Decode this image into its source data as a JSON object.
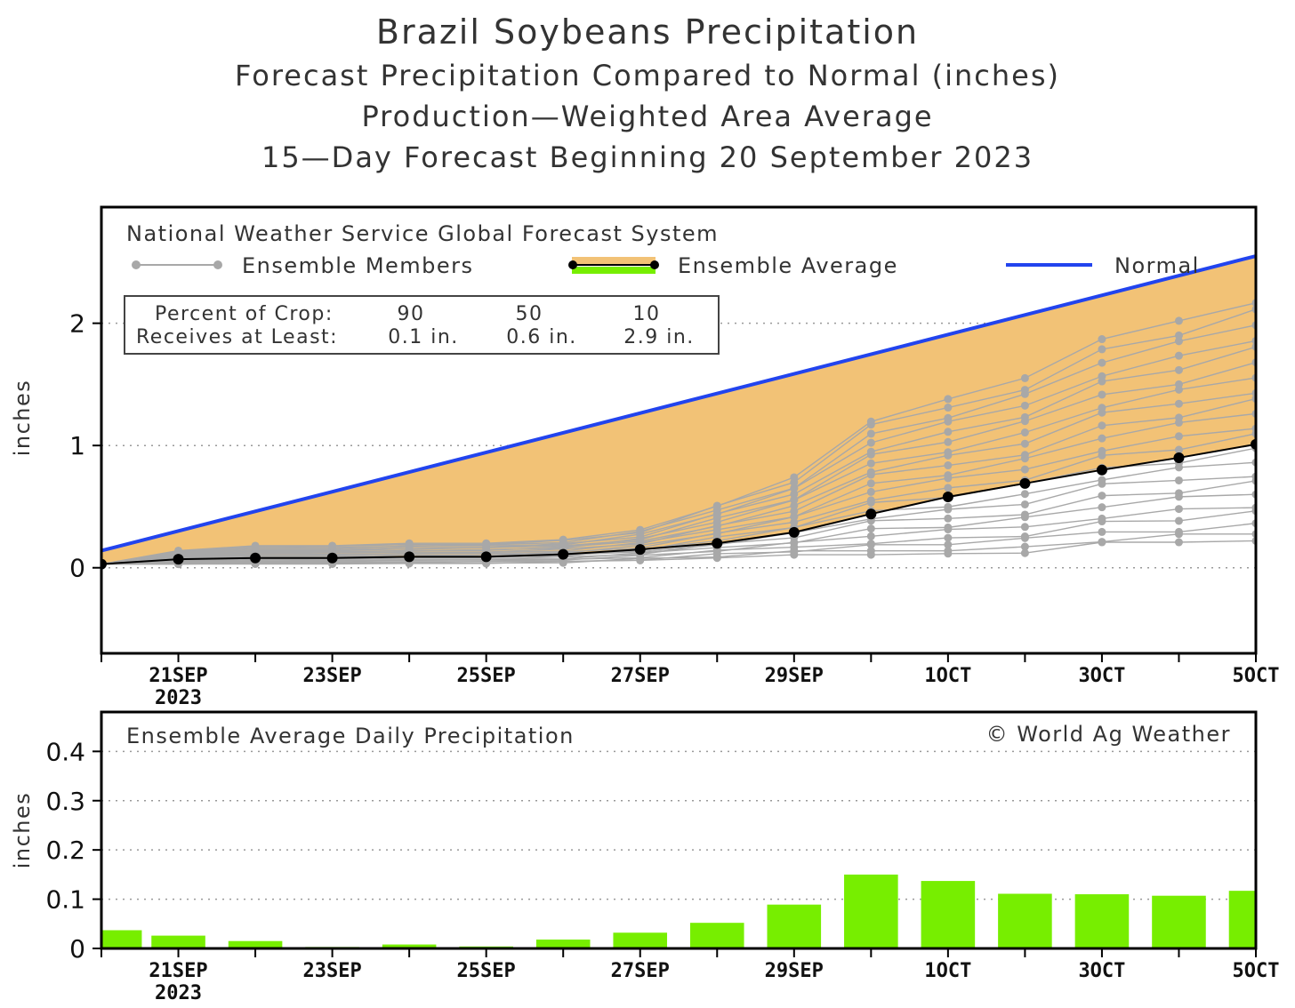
{
  "title": "Brazil Soybeans Precipitation",
  "subtitle1": "Forecast Precipitation Compared to Normal (inches)",
  "subtitle2": "Production—Weighted Area Average",
  "subtitle3": "15—Day Forecast Beginning 20 September 2023",
  "top_panel": {
    "model_label": "National Weather Service Global Forecast System",
    "legend": {
      "members": "Ensemble Members",
      "average": "Ensemble Average",
      "normal": "Normal"
    },
    "percent_box": {
      "row1_label": "Percent of Crop:",
      "row2_label": "Receives at Least:",
      "percents": [
        "90",
        "50",
        "10"
      ],
      "amounts": [
        "0.1 in.",
        "0.6 in.",
        "2.9 in."
      ]
    },
    "ylabel": "inches"
  },
  "bottom_panel": {
    "label": "Ensemble Average Daily Precipitation",
    "credit": "© World Ag Weather",
    "ylabel": "inches"
  },
  "colors": {
    "normal": "#2244ee",
    "fill": "#f2c276",
    "members": "#a8a8a8",
    "average": "#000000",
    "bars": "#77ee00"
  },
  "chart_data": [
    {
      "type": "line",
      "title": "Brazil Soybeans Precipitation",
      "ylabel": "inches",
      "x_tick_labels": [
        "21SEP",
        "23SEP",
        "25SEP",
        "27SEP",
        "29SEP",
        "1OCT",
        "3OCT",
        "5OCT"
      ],
      "x_tick_sublabel": "2023",
      "x_range": [
        "20SEP",
        "5OCT"
      ],
      "yticks": [
        0,
        1,
        2
      ],
      "ylim": [
        -0.7,
        2.95
      ],
      "grid": "dotted horizontal",
      "x_dates": [
        "20SEP",
        "21SEP",
        "22SEP",
        "23SEP",
        "24SEP",
        "25SEP",
        "26SEP",
        "27SEP",
        "28SEP",
        "29SEP",
        "30SEP",
        "1OCT",
        "2OCT",
        "3OCT",
        "4OCT",
        "5OCT"
      ],
      "series": [
        {
          "name": "Normal",
          "x": [
            "20SEP",
            "5OCT"
          ],
          "values": [
            0.14,
            2.55
          ]
        },
        {
          "name": "Ensemble Average",
          "x": [
            "20SEP",
            "21SEP",
            "22SEP",
            "23SEP",
            "24SEP",
            "25SEP",
            "26SEP",
            "27SEP",
            "28SEP",
            "29SEP",
            "30SEP",
            "1OCT",
            "2OCT",
            "3OCT",
            "4OCT",
            "5OCT"
          ],
          "values": [
            0.03,
            0.07,
            0.08,
            0.08,
            0.09,
            0.09,
            0.11,
            0.15,
            0.2,
            0.29,
            0.44,
            0.58,
            0.69,
            0.8,
            0.9,
            1.01
          ]
        }
      ],
      "ensemble_members": {
        "x": [
          "21SEP",
          "22SEP",
          "23SEP",
          "24SEP",
          "25SEP",
          "26SEP",
          "27SEP",
          "28SEP",
          "29SEP",
          "30SEP",
          "1OCT",
          "2OCT",
          "3OCT",
          "4OCT",
          "5OCT"
        ],
        "min": [
          0.02,
          0.03,
          0.03,
          0.03,
          0.03,
          0.04,
          0.06,
          0.08,
          0.1,
          0.1,
          0.1,
          0.12,
          0.18,
          0.2,
          0.22
        ],
        "max": [
          0.14,
          0.18,
          0.18,
          0.2,
          0.2,
          0.23,
          0.31,
          0.52,
          0.74,
          1.21,
          1.38,
          1.56,
          1.87,
          2.02,
          2.2
        ]
      },
      "percent_of_crop": {
        "percents": [
          90,
          50,
          10
        ],
        "amounts_in": [
          0.1,
          0.6,
          2.9
        ]
      }
    },
    {
      "type": "bar",
      "title": "Ensemble Average Daily Precipitation",
      "ylabel": "inches",
      "categories": [
        "20SEP",
        "21SEP",
        "22SEP",
        "23SEP",
        "24SEP",
        "25SEP",
        "26SEP",
        "27SEP",
        "28SEP",
        "29SEP",
        "30SEP",
        "1OCT",
        "2OCT",
        "3OCT",
        "4OCT",
        "5OCT"
      ],
      "values": [
        0.037,
        0.026,
        0.015,
        0.003,
        0.008,
        0.004,
        0.018,
        0.032,
        0.052,
        0.089,
        0.15,
        0.137,
        0.111,
        0.11,
        0.107,
        0.117
      ],
      "yticks": [
        0,
        0.1,
        0.2,
        0.3,
        0.4
      ],
      "ylim": [
        0,
        0.48
      ],
      "x_tick_labels": [
        "21SEP",
        "23SEP",
        "25SEP",
        "27SEP",
        "29SEP",
        "1OCT",
        "3OCT",
        "5OCT"
      ],
      "x_tick_sublabel": "2023"
    }
  ]
}
